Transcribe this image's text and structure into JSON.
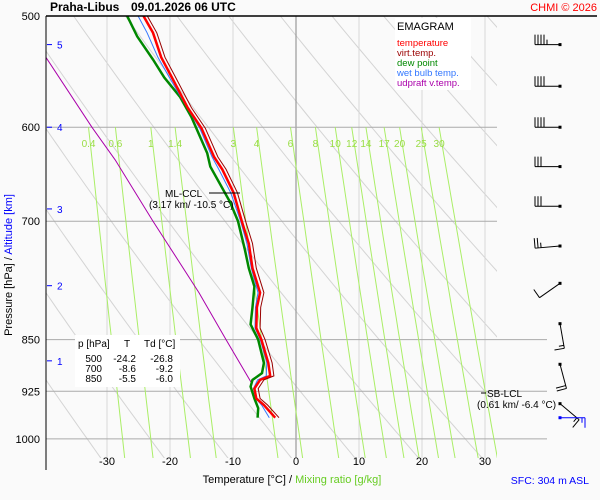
{
  "header": {
    "station": "Praha-Libus",
    "datetime": "09.01.2026 06 UTC",
    "copyright": "CHMI © 2026"
  },
  "footer": {
    "sfc": "SFC: 304 m ASL"
  },
  "legend": {
    "title": "EMAGRAM",
    "items": [
      {
        "label": "temperature",
        "color": "#ff0000"
      },
      {
        "label": "virt.temp.",
        "color": "#990000"
      },
      {
        "label": "dew point",
        "color": "#008800"
      },
      {
        "label": "wet bulb temp.",
        "color": "#3377ff"
      },
      {
        "label": "udpraft v.temp.",
        "color": "#aa00aa"
      }
    ]
  },
  "table": {
    "headers": [
      "p [hPa]",
      "T",
      "Td [°C]"
    ],
    "rows": [
      [
        "500",
        "-24.2",
        "-26.8"
      ],
      [
        "700",
        "-8.6",
        "-9.2"
      ],
      [
        "850",
        "-5.5",
        "-6.0"
      ]
    ]
  },
  "annotations": {
    "ml_ccl": {
      "label": "ML-CCL",
      "detail": "(3.17 km/ -10.5 °C)",
      "p": 672
    },
    "sb_lcl": {
      "label": "SB-LCL",
      "detail": "(0.61 km/ -6.4 °C)",
      "p": 932
    }
  },
  "chart_data": {
    "type": "line",
    "title": "EMAGRAM",
    "xlabel": "Temperature [°C]",
    "xlabel2": "Mixing ratio [g/kg]",
    "ylabel": "Pressure [hPa]",
    "ylabel2": "Altitude [km]",
    "xlim": [
      -39.7,
      31.9
    ],
    "ylim": [
      1047,
      500
    ],
    "x_ticks": [
      -30,
      -20,
      -10,
      0,
      10,
      20,
      30
    ],
    "y_ticks": [
      500,
      600,
      700,
      850,
      925,
      1000
    ],
    "altitude_ticks": [
      {
        "km": "5",
        "p": 524
      },
      {
        "km": "4",
        "p": 600
      },
      {
        "km": "3",
        "p": 686
      },
      {
        "km": "2",
        "p": 778
      },
      {
        "km": "1",
        "p": 880
      }
    ],
    "mixing_ratio_labels": [
      "0.4",
      "0.6",
      "1",
      "1.4",
      "3",
      "4",
      "6",
      "8",
      "10",
      "12",
      "14",
      "17",
      "20",
      "25",
      "30"
    ],
    "series": [
      {
        "name": "temperature",
        "color": "#ff0000",
        "points": [
          [
            500,
            -24.2
          ],
          [
            514,
            -22.7
          ],
          [
            535,
            -21.4
          ],
          [
            553,
            -19.7
          ],
          [
            581,
            -17.2
          ],
          [
            601,
            -15.0
          ],
          [
            630,
            -13.0
          ],
          [
            643,
            -11.7
          ],
          [
            668,
            -9.9
          ],
          [
            700,
            -8.6
          ],
          [
            726,
            -7.5
          ],
          [
            756,
            -6.9
          ],
          [
            787,
            -5.7
          ],
          [
            806,
            -6.2
          ],
          [
            834,
            -6.3
          ],
          [
            850,
            -5.5
          ],
          [
            883,
            -4.4
          ],
          [
            902,
            -4.1
          ],
          [
            908,
            -5.7
          ],
          [
            921,
            -6.6
          ],
          [
            936,
            -6.3
          ],
          [
            946,
            -5.1
          ],
          [
            966,
            -3.3
          ]
        ]
      },
      {
        "name": "dew point",
        "color": "#008800",
        "points": [
          [
            500,
            -26.8
          ],
          [
            517,
            -25.2
          ],
          [
            537,
            -22.7
          ],
          [
            553,
            -20.9
          ],
          [
            571,
            -18.4
          ],
          [
            590,
            -16.6
          ],
          [
            626,
            -14.1
          ],
          [
            640,
            -13.6
          ],
          [
            678,
            -10.5
          ],
          [
            700,
            -9.2
          ],
          [
            734,
            -8.1
          ],
          [
            756,
            -7.5
          ],
          [
            779,
            -6.6
          ],
          [
            806,
            -6.9
          ],
          [
            829,
            -7.2
          ],
          [
            850,
            -6.0
          ],
          [
            883,
            -5.1
          ],
          [
            898,
            -5.4
          ],
          [
            908,
            -6.9
          ],
          [
            918,
            -7.2
          ],
          [
            936,
            -6.6
          ],
          [
            951,
            -6.0
          ],
          [
            966,
            -6.1
          ]
        ]
      },
      {
        "name": "updraft v.temp.",
        "color": "#aa00aa",
        "points": [
          [
            535,
            -39.7
          ],
          [
            600,
            -32.4
          ],
          [
            633,
            -28.7
          ],
          [
            700,
            -22.7
          ],
          [
            787,
            -15.4
          ],
          [
            850,
            -11.1
          ],
          [
            912,
            -7.1
          ]
        ]
      }
    ],
    "wind_barbs": [
      {
        "p": 524,
        "dir": 270,
        "kt": 45
      },
      {
        "p": 561,
        "dir": 270,
        "kt": 40
      },
      {
        "p": 600,
        "dir": 270,
        "kt": 40
      },
      {
        "p": 640,
        "dir": 270,
        "kt": 30
      },
      {
        "p": 683,
        "dir": 270,
        "kt": 30
      },
      {
        "p": 729,
        "dir": 265,
        "kt": 25
      },
      {
        "p": 775,
        "dir": 235,
        "kt": 10
      },
      {
        "p": 828,
        "dir": 170,
        "kt": 15
      },
      {
        "p": 885,
        "dir": 165,
        "kt": 20
      },
      {
        "p": 944,
        "dir": 130,
        "kt": 15
      },
      {
        "p": 966,
        "dir": 90,
        "kt": 15,
        "surface": true
      }
    ]
  }
}
